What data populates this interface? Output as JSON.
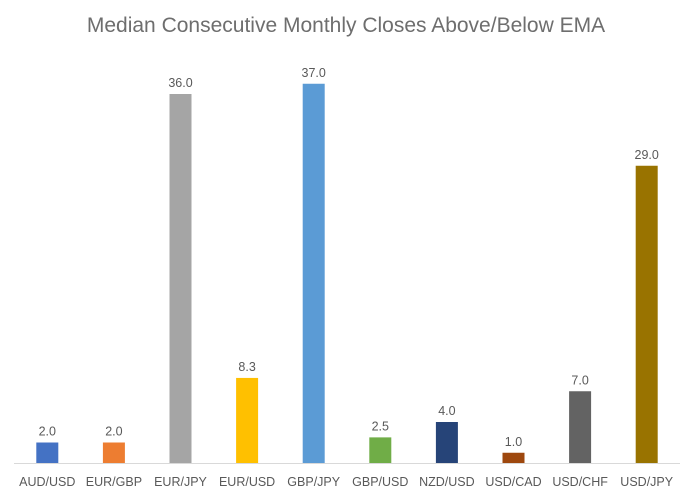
{
  "chart_data": {
    "type": "bar",
    "title": "Median Consecutive Monthly Closes Above/Below EMA",
    "categories": [
      "AUD/USD",
      "EUR/GBP",
      "EUR/JPY",
      "EUR/USD",
      "GBP/JPY",
      "GBP/USD",
      "NZD/USD",
      "USD/CAD",
      "USD/CHF",
      "USD/JPY"
    ],
    "values": [
      2.0,
      2.0,
      36.0,
      8.3,
      37.0,
      2.5,
      4.0,
      1.0,
      7.0,
      29.0
    ],
    "value_labels": [
      "2.0",
      "2.0",
      "36.0",
      "8.3",
      "37.0",
      "2.5",
      "4.0",
      "1.0",
      "7.0",
      "29.0"
    ],
    "colors": [
      "#4472c4",
      "#ed7d31",
      "#a5a5a5",
      "#ffc000",
      "#5b9bd5",
      "#70ad47",
      "#264478",
      "#9e480e",
      "#636363",
      "#997300"
    ],
    "ylim": [
      0,
      40
    ],
    "grid": false,
    "legend": "none",
    "axis_line_color": "#d9d9d9"
  }
}
